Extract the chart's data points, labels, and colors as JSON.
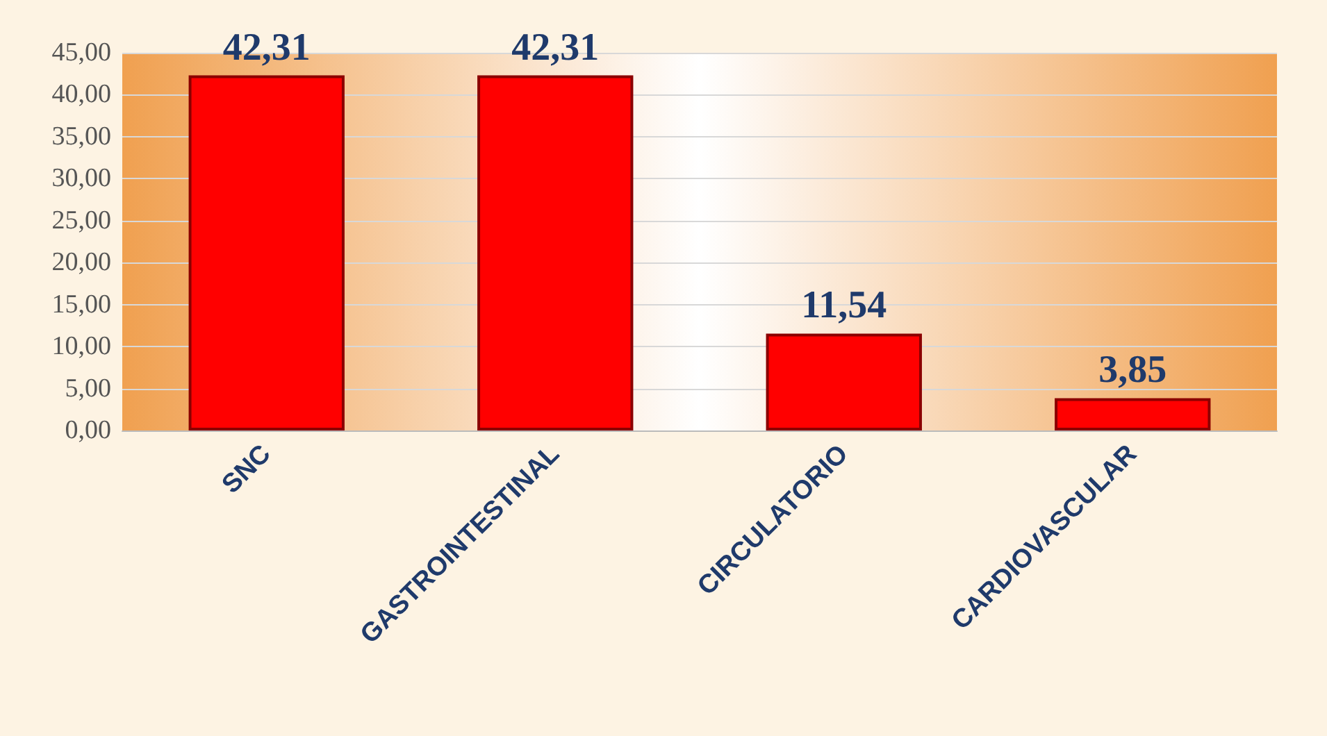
{
  "chart_data": {
    "type": "bar",
    "categories": [
      "SNC",
      "GASTROINTESTINAL",
      "CIRCULATORIO",
      "CARDIOVASCULAR"
    ],
    "values": [
      42.31,
      42.31,
      11.54,
      3.85
    ],
    "color": "#ff0000",
    "value_labels": [
      "42,31",
      "42,31",
      "11,54",
      "3,85"
    ],
    "ylim": [
      0,
      45
    ],
    "yticks": [
      {
        "value": 0,
        "label": "0,00"
      },
      {
        "value": 5,
        "label": "5,00"
      },
      {
        "value": 10,
        "label": "10,00"
      },
      {
        "value": 15,
        "label": "15,00"
      },
      {
        "value": 20,
        "label": "20,00"
      },
      {
        "value": 25,
        "label": "25,00"
      },
      {
        "value": 30,
        "label": "30,00"
      },
      {
        "value": 35,
        "label": "35,00"
      },
      {
        "value": 40,
        "label": "40,00"
      },
      {
        "value": 45,
        "label": "45,00"
      }
    ],
    "grid": "y"
  }
}
